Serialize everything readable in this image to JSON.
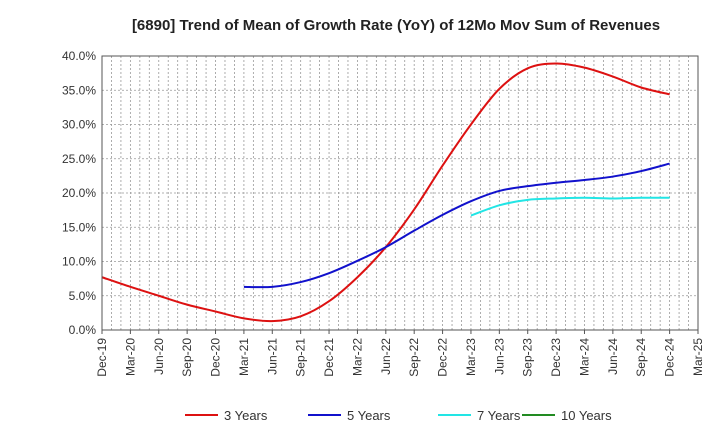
{
  "chart_data": {
    "type": "line",
    "title": "[6890]  Trend of Mean of Growth Rate (YoY) of 12Mo Mov Sum of Revenues",
    "xlabel": "",
    "ylabel": "",
    "ylim": [
      0,
      40
    ],
    "y_ticks": [
      0,
      5,
      10,
      15,
      20,
      25,
      30,
      35,
      40
    ],
    "y_tick_labels": [
      "0.0%",
      "5.0%",
      "10.0%",
      "15.0%",
      "20.0%",
      "25.0%",
      "30.0%",
      "35.0%",
      "40.0%"
    ],
    "x_ticks": [
      "Dec-19",
      "Mar-20",
      "Jun-20",
      "Sep-20",
      "Dec-20",
      "Mar-21",
      "Jun-21",
      "Sep-21",
      "Dec-21",
      "Mar-22",
      "Jun-22",
      "Sep-22",
      "Dec-22",
      "Mar-23",
      "Jun-23",
      "Sep-23",
      "Dec-23",
      "Mar-24",
      "Jun-24",
      "Sep-24",
      "Dec-24",
      "Mar-25"
    ],
    "grid": true,
    "legend_position": "bottom",
    "series": [
      {
        "name": "3 Years",
        "color": "#dd1111",
        "points": [
          [
            0,
            7.7
          ],
          [
            1,
            6.3
          ],
          [
            2,
            5.0
          ],
          [
            3,
            3.7
          ],
          [
            4,
            2.7
          ],
          [
            5,
            1.7
          ],
          [
            6,
            1.3
          ],
          [
            7,
            2.0
          ],
          [
            8,
            4.2
          ],
          [
            9,
            7.7
          ],
          [
            10,
            12.1
          ],
          [
            11,
            17.6
          ],
          [
            12,
            24.0
          ],
          [
            13,
            30.0
          ],
          [
            14,
            35.2
          ],
          [
            15,
            38.2
          ],
          [
            16,
            38.9
          ],
          [
            17,
            38.3
          ],
          [
            18,
            37.0
          ],
          [
            19,
            35.4
          ],
          [
            20,
            34.4
          ]
        ]
      },
      {
        "name": "5 Years",
        "color": "#1111cc",
        "points": [
          [
            5,
            6.3
          ],
          [
            6,
            6.3
          ],
          [
            7,
            7.0
          ],
          [
            8,
            8.3
          ],
          [
            9,
            10.1
          ],
          [
            10,
            12.1
          ],
          [
            11,
            14.5
          ],
          [
            12,
            16.8
          ],
          [
            13,
            18.8
          ],
          [
            14,
            20.3
          ],
          [
            15,
            21.0
          ],
          [
            16,
            21.5
          ],
          [
            17,
            21.9
          ],
          [
            18,
            22.4
          ],
          [
            19,
            23.2
          ],
          [
            20,
            24.3
          ]
        ]
      },
      {
        "name": "7 Years",
        "color": "#22e5e5",
        "points": [
          [
            13,
            16.7
          ],
          [
            14,
            18.2
          ],
          [
            15,
            19.0
          ],
          [
            16,
            19.2
          ],
          [
            17,
            19.3
          ],
          [
            18,
            19.2
          ],
          [
            19,
            19.3
          ],
          [
            20,
            19.3
          ]
        ]
      },
      {
        "name": "10 Years",
        "color": "#228b22",
        "points": []
      }
    ]
  }
}
